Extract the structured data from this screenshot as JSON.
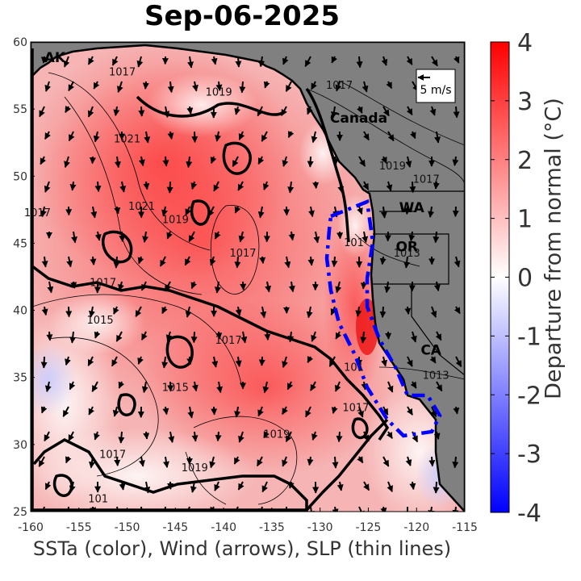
{
  "title": "Sep-06-2025",
  "xlabel": "SSTa (color), Wind (arrows), SLP (thin lines)",
  "colorbar": {
    "label": "Departure from normal (°C)",
    "ticks": [
      "4",
      "3",
      "2",
      "1",
      "0",
      "-1",
      "-2",
      "-3",
      "-4"
    ],
    "range": [
      -4,
      4
    ],
    "colors": {
      "max": "#ff0000",
      "mid": "#ffffff",
      "min": "#0000ff"
    }
  },
  "axes": {
    "x_ticks": [
      "-160",
      "-155",
      "-150",
      "-145",
      "-140",
      "-135",
      "-130",
      "-125",
      "-120",
      "-115"
    ],
    "y_ticks": [
      "60",
      "55",
      "50",
      "45",
      "40",
      "35",
      "30",
      "25"
    ],
    "xlim": [
      -160,
      -115
    ],
    "ylim": [
      25,
      60
    ]
  },
  "map": {
    "land_color": "#808080",
    "region_labels": [
      {
        "text": "AK",
        "lon": -157.5,
        "lat": 58.5
      },
      {
        "text": "Canada",
        "lon": -126.0,
        "lat": 54.0
      },
      {
        "text": "WA",
        "lon": -120.5,
        "lat": 47.3
      },
      {
        "text": "OR",
        "lon": -121.0,
        "lat": 44.4
      },
      {
        "text": "CA",
        "lon": -118.5,
        "lat": 36.7
      }
    ],
    "wind_scale_label": "5 m/s",
    "outlined_region_color": "#0000ff",
    "slp_labels": [
      {
        "text": "1017",
        "lon": -150.5,
        "lat": 57.5
      },
      {
        "text": "1017",
        "lon": -128.0,
        "lat": 56.5
      },
      {
        "text": "1019",
        "lon": -140.5,
        "lat": 56.0
      },
      {
        "text": "1021",
        "lon": -150.0,
        "lat": 52.5
      },
      {
        "text": "1019",
        "lon": -122.5,
        "lat": 50.5
      },
      {
        "text": "1017",
        "lon": -119.0,
        "lat": 49.5
      },
      {
        "text": "1021",
        "lon": -148.5,
        "lat": 47.5
      },
      {
        "text": "1019",
        "lon": -145.0,
        "lat": 46.5
      },
      {
        "text": "1017",
        "lon": -138.0,
        "lat": 44.0
      },
      {
        "text": "1017",
        "lon": -159.3,
        "lat": 47.0
      },
      {
        "text": "1017",
        "lon": -152.5,
        "lat": 41.8
      },
      {
        "text": "1015",
        "lon": -152.8,
        "lat": 39.0
      },
      {
        "text": "1017",
        "lon": -139.5,
        "lat": 37.5
      },
      {
        "text": "1015",
        "lon": -145.0,
        "lat": 34.0
      },
      {
        "text": "1019",
        "lon": -134.5,
        "lat": 30.5
      },
      {
        "text": "1017",
        "lon": -151.5,
        "lat": 29.0
      },
      {
        "text": "1019",
        "lon": -143.0,
        "lat": 28.0
      },
      {
        "text": "1013",
        "lon": -118.0,
        "lat": 34.9
      },
      {
        "text": "1013",
        "lon": -121.0,
        "lat": 44.0
      },
      {
        "text": "1017",
        "lon": -126.3,
        "lat": 32.5
      },
      {
        "text": "101",
        "lon": -126.5,
        "lat": 35.5
      },
      {
        "text": "101",
        "lon": -126.5,
        "lat": 44.8
      },
      {
        "text": "101",
        "lon": -153.0,
        "lat": 25.7
      }
    ]
  }
}
